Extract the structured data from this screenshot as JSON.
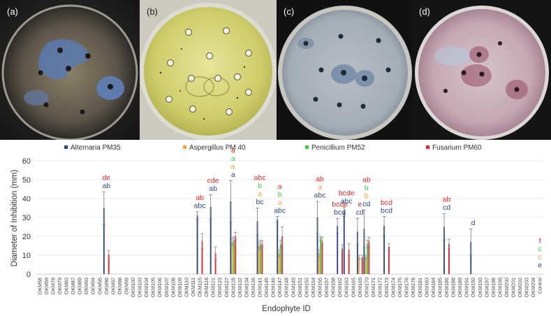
{
  "panels": [
    {
      "label": "(a)",
      "palette": "dark-mottled-blue"
    },
    {
      "label": "(b)",
      "palette": "yellow-agar"
    },
    {
      "label": "(c)",
      "palette": "grey-blue"
    },
    {
      "label": "(d)",
      "palette": "pink-mottled"
    }
  ],
  "chart_data": {
    "type": "bar",
    "title": "",
    "xlabel": "Endophyte ID",
    "ylabel": "Diameter of Inhibition (mm)",
    "ylim": [
      0,
      60
    ],
    "yticks": [
      0,
      10,
      20,
      30,
      40,
      50,
      60
    ],
    "grid": true,
    "legend_position": "top",
    "categories": [
      "OKM58",
      "OKM59",
      "OKM78",
      "OKM79",
      "OKM83",
      "OKM87",
      "OKM89",
      "OKM93",
      "OKM94",
      "OKM95",
      "OKM96",
      "OKM97",
      "OKM98",
      "OKM99",
      "OKM100",
      "OKM103",
      "OKM104",
      "OKM105",
      "OKM106",
      "OKM107",
      "OKM108",
      "OKM109",
      "OKM110",
      "OKM111",
      "OKM115",
      "OKM118",
      "OKM121",
      "OKM123",
      "OKM127",
      "OKM128",
      "OKM132",
      "OKM134",
      "OKM136",
      "OKM141",
      "OKM145",
      "OKM146",
      "OKM147",
      "OKM148",
      "OKM149",
      "OKM151",
      "OKM153",
      "OKM154",
      "OKM155",
      "OKM157",
      "OKM158",
      "OKM162",
      "OKM163",
      "OKM165",
      "OKM169",
      "OKM170",
      "OKM171",
      "OKM172",
      "OKM173",
      "OKM174",
      "OKM175",
      "OKM176",
      "OKM178",
      "OKM181",
      "OKM183",
      "OKM184",
      "OKM185",
      "OKM186",
      "OKM188",
      "OKM189",
      "OKM191",
      "OKM192",
      "OKM193",
      "OKM197",
      "OKM198",
      "OKM199",
      "OKM200",
      "OKM201",
      "OKM202",
      "OKM203",
      "OKM204",
      "Control"
    ],
    "series": [
      {
        "name": "Alternaria PM35",
        "color": "#2e4a7d",
        "points": [
          {
            "category": "OKM96",
            "value": 35,
            "error": 8.5
          },
          {
            "category": "OKM115",
            "value": 31,
            "error": 2
          },
          {
            "category": "OKM121",
            "value": 35.5,
            "error": 6.5
          },
          {
            "category": "OKM128",
            "value": 38.5,
            "error": 11
          },
          {
            "category": "OKM141",
            "value": 28,
            "error": 7
          },
          {
            "category": "OKM147",
            "value": 29,
            "error": 1.5
          },
          {
            "category": "OKM155",
            "value": 30,
            "error": 8.5
          },
          {
            "category": "OKM162",
            "value": 25.5,
            "error": 4
          },
          {
            "category": "OKM163",
            "value": 33,
            "error": 2.5
          },
          {
            "category": "OKM169",
            "value": 22.5,
            "error": 7
          },
          {
            "category": "OKM170",
            "value": 24,
            "error": 10
          },
          {
            "category": "OKM173",
            "value": 25.5,
            "error": 5
          },
          {
            "category": "OKM186",
            "value": 25,
            "error": 7
          },
          {
            "category": "OKM192",
            "value": 17,
            "error": 7
          }
        ]
      },
      {
        "name": "Aspergillus PM 40",
        "color": "#f7a13a",
        "points": [
          {
            "category": "OKM128",
            "value": 17,
            "error": 2
          },
          {
            "category": "OKM141",
            "value": 15,
            "error": 2
          },
          {
            "category": "OKM147",
            "value": 11,
            "error": 2
          },
          {
            "category": "OKM155",
            "value": 11,
            "error": 2
          },
          {
            "category": "OKM169",
            "value": 9,
            "error": 1
          },
          {
            "category": "OKM170",
            "value": 9,
            "error": 1
          }
        ]
      },
      {
        "name": "Penicillium PM52",
        "color": "#3cd13c",
        "points": [
          {
            "category": "OKM128",
            "value": 18,
            "error": 2
          },
          {
            "category": "OKM141",
            "value": 16,
            "error": 2
          },
          {
            "category": "OKM147",
            "value": 16,
            "error": 2
          },
          {
            "category": "OKM155",
            "value": 19,
            "error": 1
          },
          {
            "category": "OKM170",
            "value": 16,
            "error": 2
          }
        ]
      },
      {
        "name": "Fusarium PM60",
        "color": "#e4262c",
        "points": [
          {
            "category": "OKM96",
            "value": 10.5,
            "error": 2
          },
          {
            "category": "OKM115",
            "value": 17.5,
            "error": 4
          },
          {
            "category": "OKM121",
            "value": 11,
            "error": 3.5
          },
          {
            "category": "OKM128",
            "value": 20,
            "error": 2
          },
          {
            "category": "OKM141",
            "value": 16,
            "error": 1.5
          },
          {
            "category": "OKM147",
            "value": 20,
            "error": 5
          },
          {
            "category": "OKM155",
            "value": 17.5,
            "error": 2
          },
          {
            "category": "OKM162",
            "value": 13.5,
            "error": 2
          },
          {
            "category": "OKM163",
            "value": 13,
            "error": 3
          },
          {
            "category": "OKM169",
            "value": 9,
            "error": 1
          },
          {
            "category": "OKM170",
            "value": 17.5,
            "error": 2
          },
          {
            "category": "OKM173",
            "value": 14.5,
            "error": 1.5
          },
          {
            "category": "OKM186",
            "value": 16,
            "error": 2.5
          }
        ]
      }
    ],
    "annotations": [
      {
        "category": "OKM96",
        "labels": [
          {
            "text": "de",
            "series": "Fusarium PM60"
          },
          {
            "text": "ab",
            "series": "Alternaria PM35"
          }
        ]
      },
      {
        "category": "OKM115",
        "labels": [
          {
            "text": "ab",
            "series": "Fusarium PM60"
          },
          {
            "text": "abc",
            "series": "Alternaria PM35"
          }
        ]
      },
      {
        "category": "OKM121",
        "labels": [
          {
            "text": "cde",
            "series": "Fusarium PM60"
          },
          {
            "text": "ab",
            "series": "Alternaria PM35"
          }
        ]
      },
      {
        "category": "OKM128",
        "labels": [
          {
            "text": "a",
            "series": "Fusarium PM60"
          },
          {
            "text": "a",
            "series": "Penicillium PM52"
          },
          {
            "text": "a",
            "series": "Aspergillus PM 40"
          },
          {
            "text": "a",
            "series": "Alternaria PM35"
          }
        ]
      },
      {
        "category": "OKM141",
        "labels": [
          {
            "text": "abc",
            "series": "Fusarium PM60"
          },
          {
            "text": "b",
            "series": "Penicillium PM52"
          },
          {
            "text": "a",
            "series": "Aspergillus PM 40"
          },
          {
            "text": "bc",
            "series": "Alternaria PM35"
          }
        ]
      },
      {
        "category": "OKM147",
        "labels": [
          {
            "text": "a",
            "series": "Fusarium PM60"
          },
          {
            "text": "b",
            "series": "Penicillium PM52"
          },
          {
            "text": "a",
            "series": "Aspergillus PM 40"
          },
          {
            "text": "abc",
            "series": "Alternaria PM35"
          }
        ]
      },
      {
        "category": "OKM155",
        "labels": [
          {
            "text": "ab",
            "series": "Fusarium PM60"
          },
          {
            "text": "a",
            "series": "Aspergillus PM 40"
          },
          {
            "text": "abc",
            "series": "Alternaria PM35"
          }
        ]
      },
      {
        "category": "OKM162",
        "labels": [
          {
            "text": "bcde",
            "series": "Fusarium PM60"
          },
          {
            "text": "bcd",
            "series": "Alternaria PM35"
          }
        ]
      },
      {
        "category": "OKM163",
        "labels": [
          {
            "text": "bcde",
            "series": "Fusarium PM60"
          },
          {
            "text": "abc",
            "series": "Alternaria PM35"
          }
        ]
      },
      {
        "category": "OKM169",
        "labels": [
          {
            "text": "e",
            "series": "Fusarium PM60"
          },
          {
            "text": "cd",
            "series": "Alternaria PM35"
          }
        ]
      },
      {
        "category": "OKM170",
        "labels": [
          {
            "text": "ab",
            "series": "Fusarium PM60"
          },
          {
            "text": "b",
            "series": "Penicillium PM52"
          },
          {
            "text": "b",
            "series": "Aspergillus PM 40"
          },
          {
            "text": "cd",
            "series": "Alternaria PM35"
          }
        ]
      },
      {
        "category": "OKM173",
        "labels": [
          {
            "text": "bcd",
            "series": "Fusarium PM60"
          },
          {
            "text": "bcd",
            "series": "Alternaria PM35"
          }
        ]
      },
      {
        "category": "OKM186",
        "labels": [
          {
            "text": "ab",
            "series": "Fusarium PM60"
          },
          {
            "text": "cd",
            "series": "Alternaria PM35"
          }
        ]
      },
      {
        "category": "OKM192",
        "labels": [
          {
            "text": "d",
            "series": "Alternaria PM35"
          }
        ]
      },
      {
        "category": "Control",
        "labels": [
          {
            "text": "f",
            "series": "Fusarium PM60"
          },
          {
            "text": "c",
            "series": "Penicillium PM52"
          },
          {
            "text": "c",
            "series": "Aspergillus PM 40"
          },
          {
            "text": "e",
            "series": "Alternaria PM35"
          }
        ]
      }
    ]
  }
}
